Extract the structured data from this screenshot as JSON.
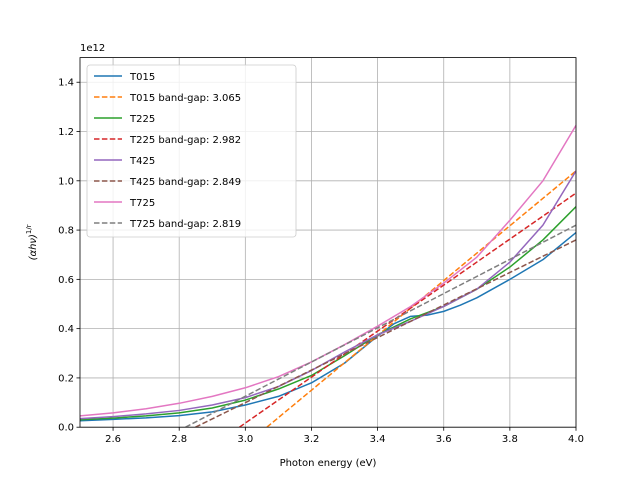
{
  "chart_data": {
    "type": "line",
    "title": "",
    "xlabel": "Photon energy (eV)",
    "ylabel": "(αhν)",
    "ylabel_sup": "1/r",
    "y_offset_text": "1e12",
    "xlim": [
      2.5,
      4.0
    ],
    "ylim": [
      0.0,
      1.5
    ],
    "x_ticks": [
      2.6,
      2.8,
      3.0,
      3.2,
      3.4,
      3.6,
      3.8,
      4.0
    ],
    "x_tick_labels": [
      "2.6",
      "2.8",
      "3.0",
      "3.2",
      "3.4",
      "3.6",
      "3.8",
      "4.0"
    ],
    "y_ticks": [
      0.0,
      0.2,
      0.4,
      0.6,
      0.8,
      1.0,
      1.2,
      1.4
    ],
    "y_tick_labels": [
      "0.0",
      "0.2",
      "0.4",
      "0.6",
      "0.8",
      "1.0",
      "1.2",
      "1.4"
    ],
    "grid": true,
    "legend_position": "top-left",
    "series": [
      {
        "name": "T015",
        "style": "solid",
        "color": "#1f77b4",
        "x": [
          2.5,
          2.6,
          2.7,
          2.8,
          2.9,
          3.0,
          3.1,
          3.2,
          3.3,
          3.4,
          3.45,
          3.5,
          3.55,
          3.6,
          3.65,
          3.7,
          3.8,
          3.9,
          4.0
        ],
        "y": [
          0.026,
          0.032,
          0.038,
          0.047,
          0.062,
          0.09,
          0.125,
          0.18,
          0.26,
          0.37,
          0.42,
          0.45,
          0.455,
          0.47,
          0.495,
          0.525,
          0.6,
          0.68,
          0.79
        ]
      },
      {
        "name": "T015  band-gap: 3.065",
        "style": "dashed",
        "color": "#ff7f0e",
        "x": [
          3.065,
          4.0
        ],
        "y": [
          0.0,
          1.04
        ]
      },
      {
        "name": "T225",
        "style": "solid",
        "color": "#2ca02c",
        "x": [
          2.5,
          2.6,
          2.7,
          2.8,
          2.9,
          3.0,
          3.1,
          3.2,
          3.3,
          3.4,
          3.5,
          3.6,
          3.7,
          3.8,
          3.9,
          4.0
        ],
        "y": [
          0.03,
          0.037,
          0.046,
          0.058,
          0.078,
          0.11,
          0.155,
          0.21,
          0.29,
          0.375,
          0.44,
          0.49,
          0.56,
          0.65,
          0.76,
          0.895
        ]
      },
      {
        "name": "T225  band-gap: 2.982",
        "style": "dashed",
        "color": "#d62728",
        "x": [
          2.982,
          4.0
        ],
        "y": [
          0.0,
          0.95
        ]
      },
      {
        "name": "T425",
        "style": "solid",
        "color": "#9467bd",
        "x": [
          2.5,
          2.6,
          2.7,
          2.8,
          2.9,
          3.0,
          3.1,
          3.2,
          3.3,
          3.4,
          3.5,
          3.6,
          3.7,
          3.8,
          3.9,
          4.0
        ],
        "y": [
          0.035,
          0.043,
          0.054,
          0.068,
          0.09,
          0.12,
          0.165,
          0.23,
          0.305,
          0.375,
          0.43,
          0.49,
          0.56,
          0.67,
          0.82,
          1.04
        ]
      },
      {
        "name": "T425  band-gap: 2.849",
        "style": "dashed",
        "color": "#8c564b",
        "x": [
          2.849,
          4.0
        ],
        "y": [
          0.0,
          0.76
        ]
      },
      {
        "name": "T725",
        "style": "solid",
        "color": "#e377c2",
        "x": [
          2.5,
          2.6,
          2.7,
          2.8,
          2.9,
          3.0,
          3.1,
          3.2,
          3.3,
          3.4,
          3.5,
          3.6,
          3.7,
          3.8,
          3.9,
          4.0
        ],
        "y": [
          0.046,
          0.058,
          0.075,
          0.097,
          0.125,
          0.16,
          0.205,
          0.265,
          0.335,
          0.41,
          0.49,
          0.585,
          0.69,
          0.84,
          1.0,
          1.225
        ]
      },
      {
        "name": "T725  band-gap: 2.819",
        "style": "dashed",
        "color": "#7f7f7f",
        "x": [
          2.819,
          4.0
        ],
        "y": [
          0.0,
          0.82
        ]
      }
    ]
  }
}
